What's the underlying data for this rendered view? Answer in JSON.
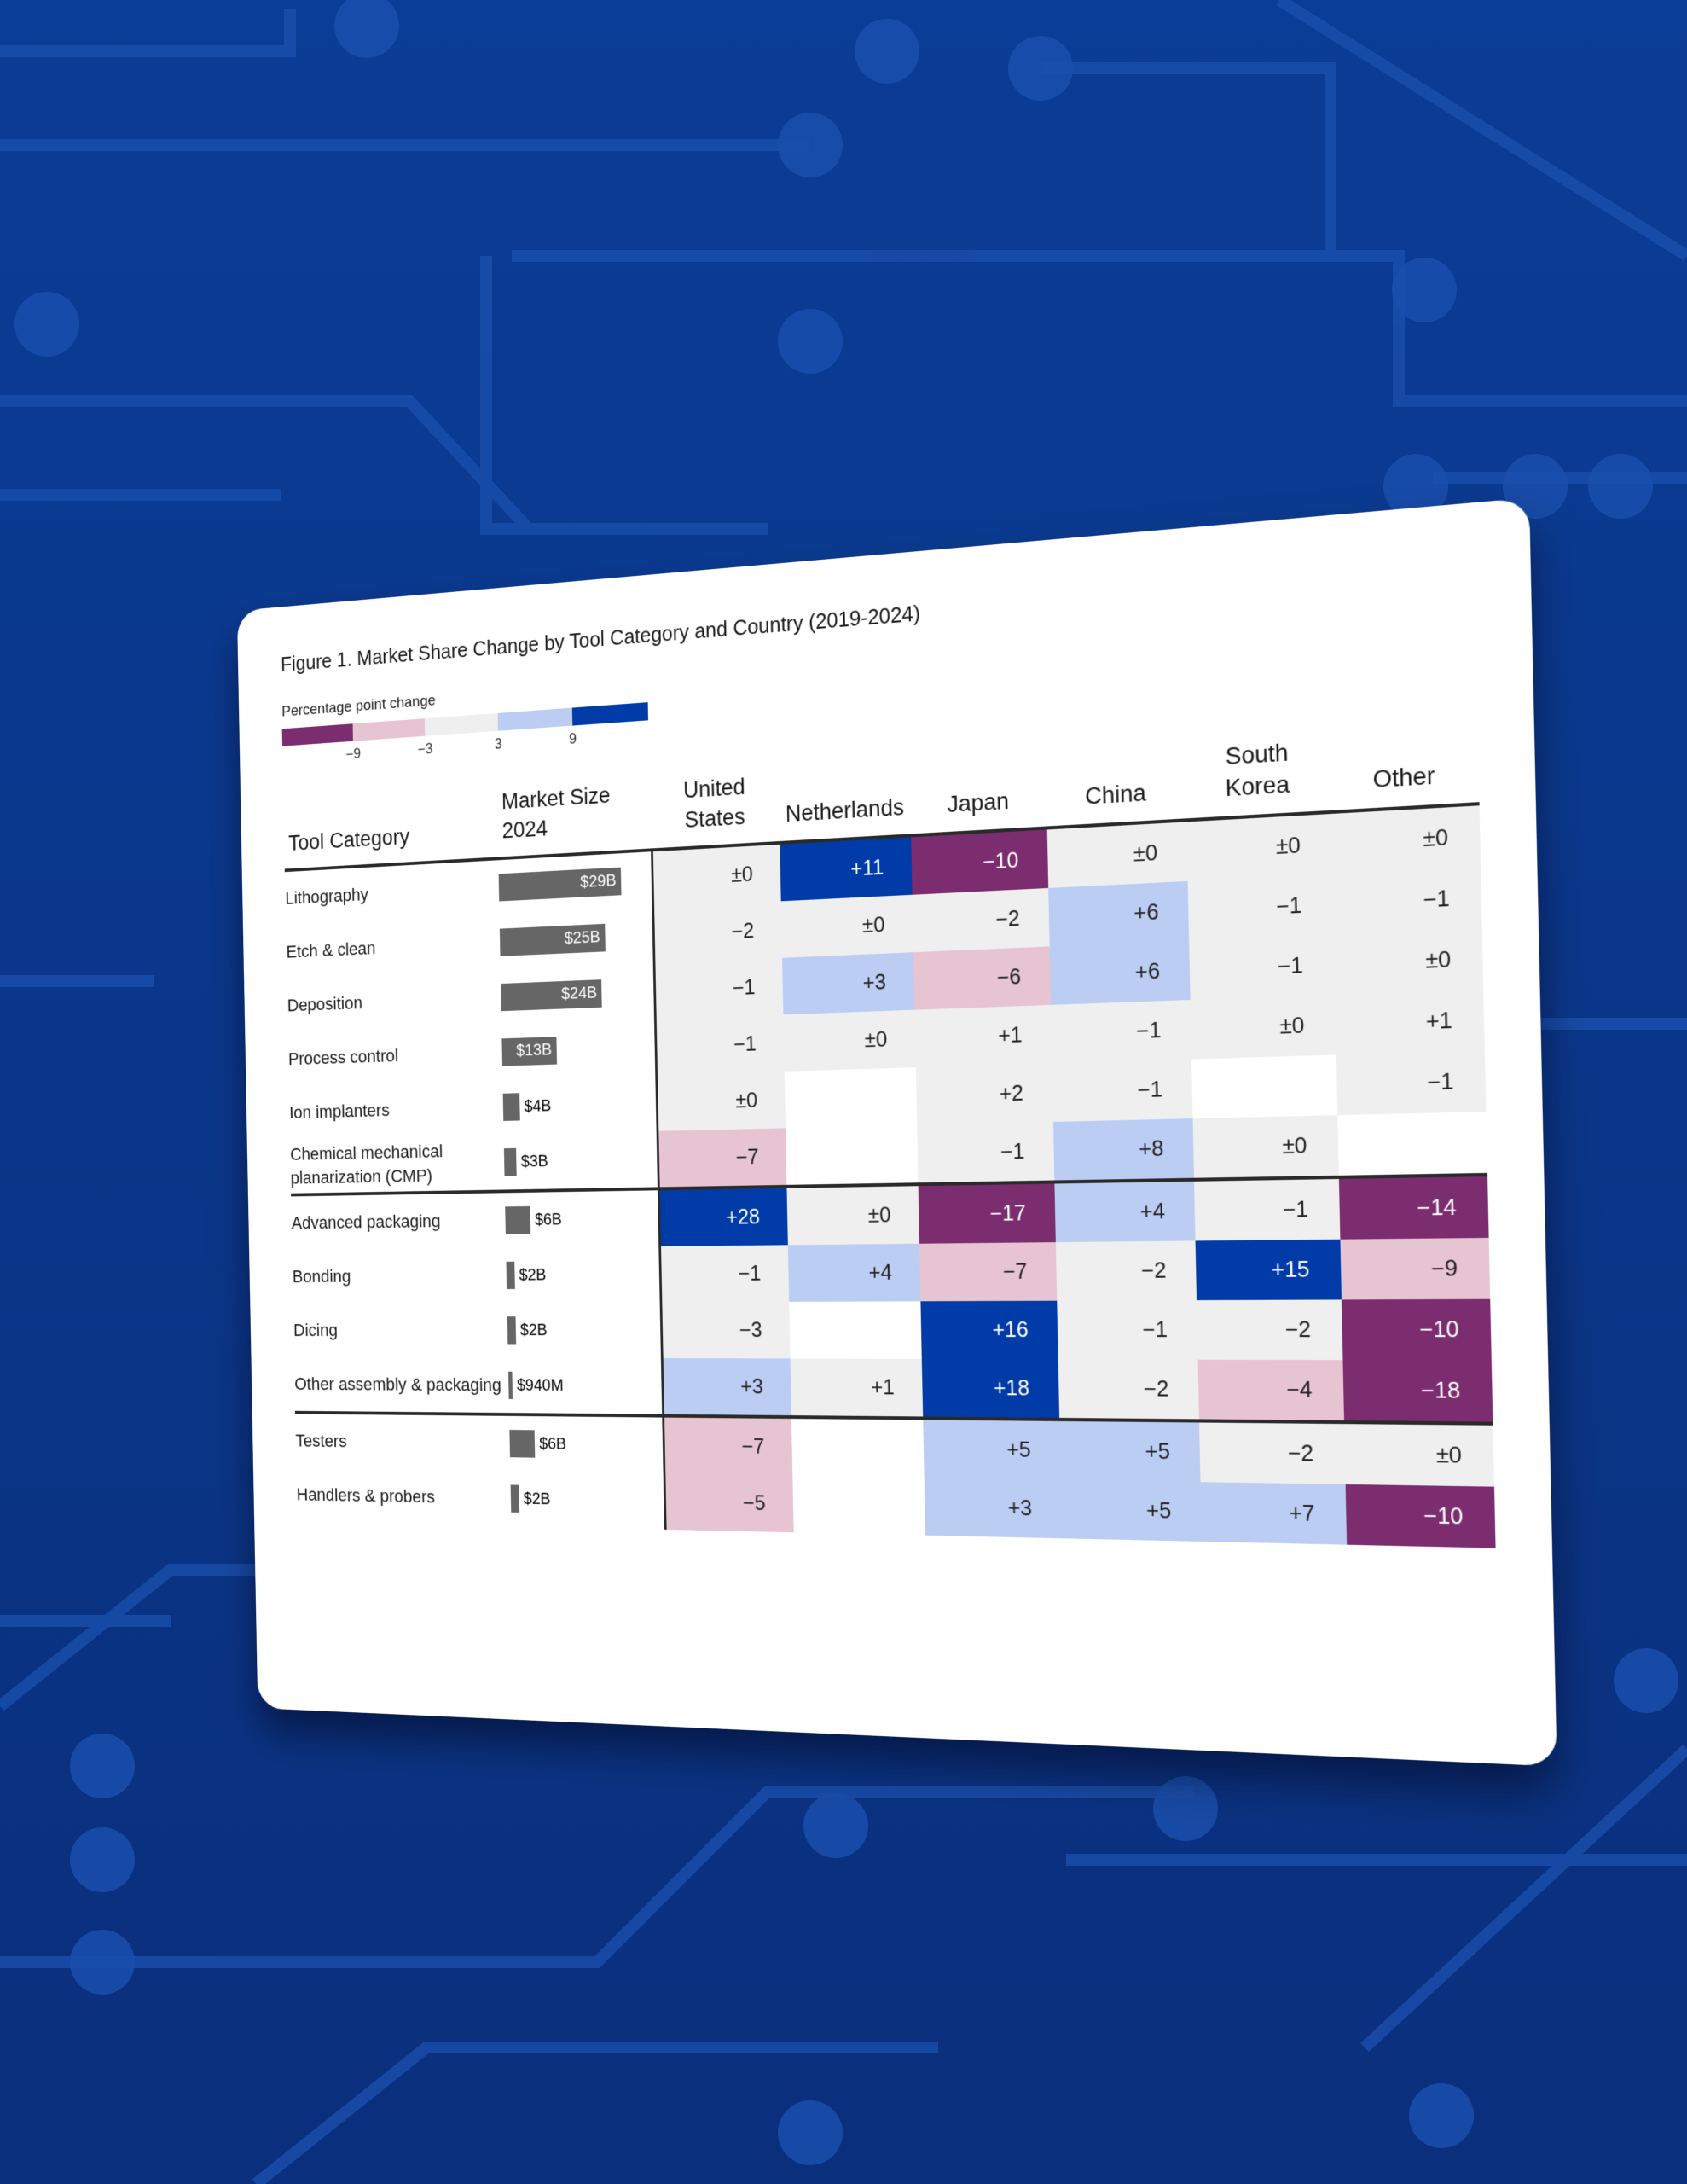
{
  "title": "Figure 1. Market Share Change by Tool Category and Country (2019-2024)",
  "legend": {
    "label": "Percentage point change",
    "ticks": [
      "−9",
      "−3",
      "3",
      "9"
    ],
    "colors": [
      "#7b2d6f",
      "#e7c4d1",
      "#efefef",
      "#bccdf3",
      "#003ba8"
    ]
  },
  "chart_data": {
    "type": "heatmap",
    "title": "Figure 1. Market Share Change by Tool Category and Country (2019-2024)",
    "value_label": "Percentage point change",
    "row_header": "Tool Category",
    "size_header": "Market Size 2024",
    "columns": [
      "United States",
      "Netherlands",
      "Japan",
      "China",
      "South Korea",
      "Other"
    ],
    "rows": [
      {
        "category": "Lithography",
        "market_size": "$29B",
        "size_billions": 29,
        "values": [
          0,
          11,
          -10,
          0,
          0,
          0
        ]
      },
      {
        "category": "Etch & clean",
        "market_size": "$25B",
        "size_billions": 25,
        "values": [
          -2,
          0,
          -2,
          6,
          -1,
          -1
        ]
      },
      {
        "category": "Deposition",
        "market_size": "$24B",
        "size_billions": 24,
        "values": [
          -1,
          3,
          -6,
          6,
          -1,
          0
        ]
      },
      {
        "category": "Process control",
        "market_size": "$13B",
        "size_billions": 13,
        "values": [
          -1,
          0,
          1,
          -1,
          0,
          1
        ]
      },
      {
        "category": "Ion implanters",
        "market_size": "$4B",
        "size_billions": 4,
        "values": [
          0,
          null,
          2,
          -1,
          null,
          -1
        ]
      },
      {
        "category": "Chemical mechanical planarization (CMP)",
        "market_size": "$3B",
        "size_billions": 3,
        "values": [
          -7,
          null,
          -1,
          8,
          0,
          null
        ]
      },
      {
        "category": "Advanced packaging",
        "market_size": "$6B",
        "size_billions": 6,
        "values": [
          28,
          0,
          -17,
          4,
          -1,
          -14
        ],
        "group_start": true
      },
      {
        "category": "Bonding",
        "market_size": "$2B",
        "size_billions": 2,
        "values": [
          -1,
          4,
          -7,
          -2,
          15,
          -9
        ]
      },
      {
        "category": "Dicing",
        "market_size": "$2B",
        "size_billions": 2,
        "values": [
          -3,
          null,
          16,
          -1,
          -2,
          -10
        ]
      },
      {
        "category": "Other assembly & packaging",
        "market_size": "$940M",
        "size_billions": 0.94,
        "values": [
          3,
          1,
          18,
          -2,
          -4,
          -18
        ]
      },
      {
        "category": "Testers",
        "market_size": "$6B",
        "size_billions": 6,
        "values": [
          -7,
          null,
          5,
          5,
          -2,
          0
        ],
        "group_start": true
      },
      {
        "category": "Handlers & probers",
        "market_size": "$2B",
        "size_billions": 2,
        "values": [
          -5,
          null,
          3,
          5,
          7,
          -10
        ]
      }
    ],
    "color_bins": {
      "breaks": [
        -9,
        -3,
        3,
        9
      ]
    }
  }
}
